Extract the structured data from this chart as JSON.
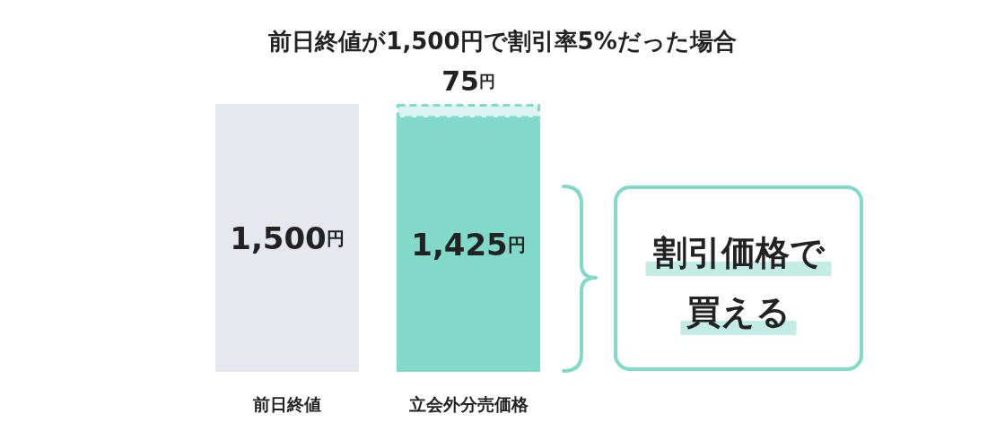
{
  "chart_data": {
    "type": "bar",
    "title": "前日終値が1,500円で割引率5%だった場合",
    "categories": [
      "前日終値",
      "立会外分売価格"
    ],
    "stacked": true,
    "series": [
      {
        "values": [
          1500,
          1425
        ],
        "colors": [
          "#e5e7ef",
          "#80d9c9"
        ],
        "value_labels": [
          "1,500円",
          "1,425円"
        ]
      },
      {
        "values": [
          null,
          75
        ],
        "colors": [
          null,
          "#dcf4f0"
        ],
        "line_style": "dashed",
        "value_labels": [
          null,
          "75円"
        ]
      }
    ],
    "annotations": [
      "割引価格で",
      "買える"
    ]
  }
}
